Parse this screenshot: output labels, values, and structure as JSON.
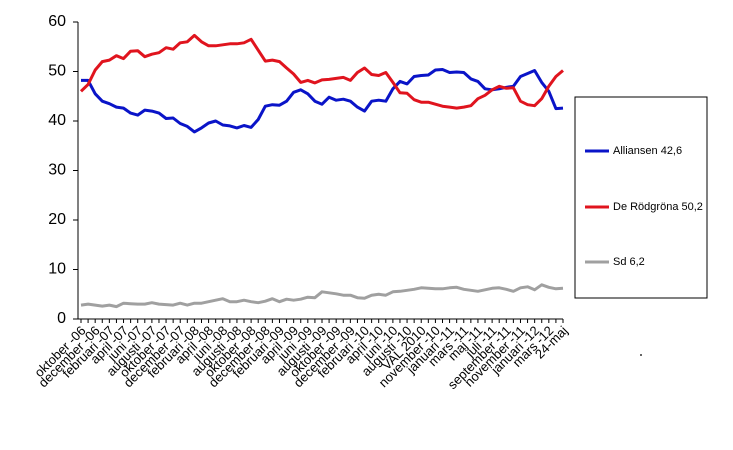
{
  "chart_data": {
    "type": "line",
    "categories": [
      "oktober -06",
      null,
      "december -06",
      null,
      "februari -07",
      null,
      "april -07",
      null,
      "juni -07",
      null,
      "augusti -07",
      null,
      "oktober -07",
      null,
      "december -07",
      null,
      "februari -08",
      null,
      "april -08",
      null,
      "juni -08",
      null,
      "augusti -08",
      null,
      "oktober -08",
      null,
      "december -08",
      null,
      "februari -09",
      null,
      "april -09",
      null,
      "juni -09",
      null,
      "augusti -09",
      null,
      "oktober -09",
      null,
      "december -09",
      null,
      "februari -10",
      null,
      "april -10",
      null,
      "juni -10",
      null,
      "augusti -10",
      null,
      "VAL 2010",
      null,
      "november -10",
      null,
      "januari -11",
      null,
      "mars -11",
      null,
      "maj -11",
      null,
      "juli -11",
      null,
      "september -11",
      null,
      "november -11",
      null,
      "januari -12",
      null,
      "mars -12",
      null,
      "24-maj"
    ],
    "series": [
      {
        "name": "Alliansen 42,6",
        "color": "#0a14c8",
        "values": [
          48.2,
          48.2,
          45.5,
          44,
          43.5,
          42.8,
          42.6,
          41.6,
          41.2,
          42.2,
          42,
          41.6,
          40.5,
          40.6,
          39.5,
          38.9,
          37.8,
          38.6,
          39.6,
          40,
          39.2,
          39,
          38.6,
          39.1,
          38.7,
          40.3,
          43,
          43.3,
          43.2,
          44,
          45.8,
          46.3,
          45.5,
          44,
          43.4,
          44.8,
          44.2,
          44.4,
          44,
          42.8,
          42,
          44,
          44.2,
          44,
          46.5,
          48,
          47.5,
          49,
          49.2,
          49.3,
          50.3,
          50.4,
          49.8,
          49.9,
          49.8,
          48.5,
          48,
          46.5,
          46.3,
          46.5,
          46.8,
          47,
          49,
          49.6,
          50.2,
          47.8,
          46,
          42.5,
          42.6
        ]
      },
      {
        "name": "De Rödgröna 50,2",
        "color": "#e0141e",
        "values": [
          46,
          47.4,
          50.3,
          52,
          52.3,
          53.2,
          52.6,
          54.1,
          54.2,
          53,
          53.5,
          53.8,
          54.8,
          54.5,
          55.8,
          56,
          57.3,
          56,
          55.2,
          55.2,
          55.4,
          55.6,
          55.6,
          55.8,
          56.5,
          54.3,
          52.1,
          52.3,
          52,
          50.7,
          49.5,
          47.8,
          48.2,
          47.7,
          48.3,
          48.4,
          48.6,
          48.8,
          48.2,
          49.8,
          50.7,
          49.4,
          49.2,
          49.8,
          47.8,
          45.7,
          45.6,
          44.3,
          43.8,
          43.8,
          43.4,
          43,
          42.8,
          42.6,
          42.8,
          43.1,
          44.5,
          45.2,
          46.3,
          47,
          46.6,
          46.7,
          44,
          43.3,
          43.1,
          44.5,
          47,
          49,
          50.2
        ]
      },
      {
        "name": "Sd 6,2",
        "color": "#a0a0a0",
        "values": [
          2.8,
          3,
          2.8,
          2.6,
          2.8,
          2.5,
          3.2,
          3.1,
          3,
          3,
          3.3,
          3,
          2.9,
          2.8,
          3.2,
          2.8,
          3.2,
          3.2,
          3.5,
          3.8,
          4.1,
          3.5,
          3.5,
          3.8,
          3.5,
          3.3,
          3.6,
          4.1,
          3.5,
          4,
          3.8,
          4,
          4.4,
          4.3,
          5.5,
          5.3,
          5.1,
          4.8,
          4.8,
          4.3,
          4.2,
          4.8,
          5,
          4.8,
          5.5,
          5.6,
          5.8,
          6,
          6.3,
          6.2,
          6.1,
          6.1,
          6.3,
          6.4,
          6,
          5.8,
          5.6,
          5.9,
          6.2,
          6.3,
          6,
          5.6,
          6.3,
          6.5,
          5.9,
          6.9,
          6.4,
          6.1,
          6.2
        ]
      }
    ],
    "ylim": [
      0,
      60
    ],
    "yticks": [
      0,
      10,
      20,
      30,
      40,
      50,
      60
    ],
    "grid": false,
    "legend": "right"
  }
}
